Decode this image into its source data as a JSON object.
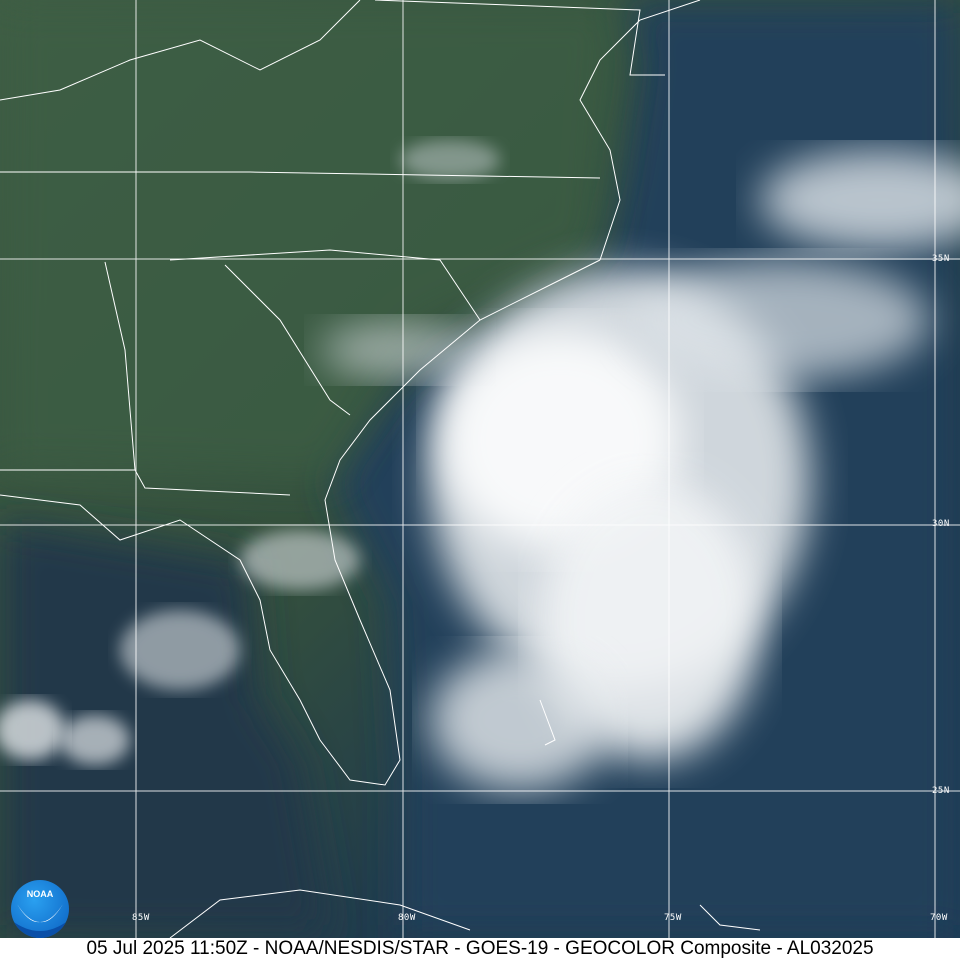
{
  "caption": "05 Jul 2025 11:50Z - NOAA/NESDIS/STAR - GOES-19 - GEOCOLOR Composite - AL032025",
  "logo_text": "NOAA",
  "latitude_labels": [
    "35N",
    "30N",
    "25N"
  ],
  "longitude_labels": [
    "85W",
    "80W",
    "75W",
    "70W"
  ],
  "colors": {
    "land": "#3d5a40",
    "ocean": "#1f3b52",
    "cloud": "#f2f4f6",
    "grid": "#ffffff"
  }
}
